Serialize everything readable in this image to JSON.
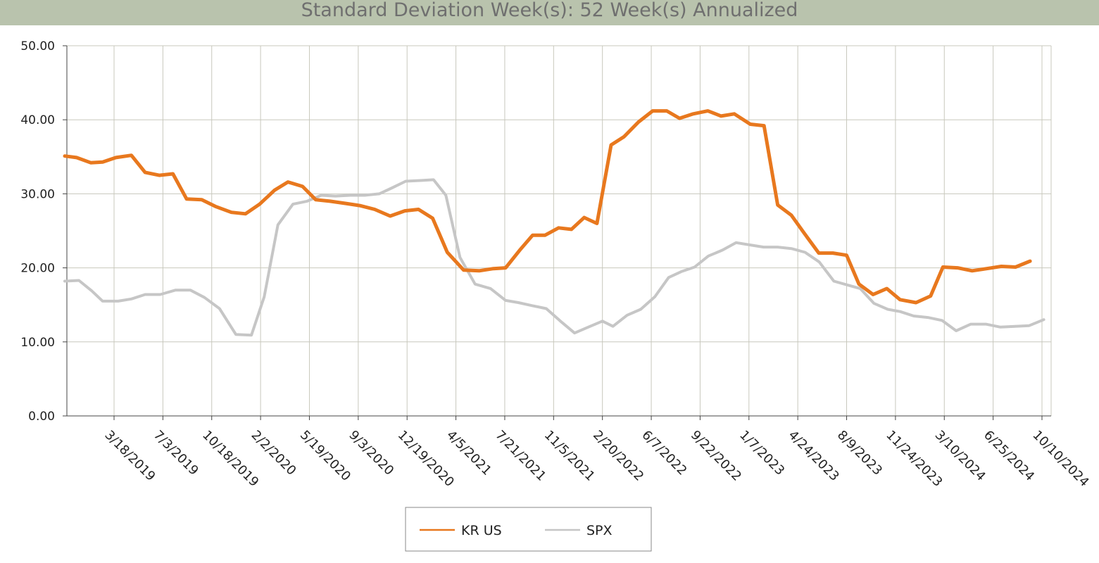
{
  "colors": {
    "title_bg": "#b9c3ad",
    "grid": "#c8c8bd",
    "axis": "#444444"
  },
  "chart_data": {
    "type": "line",
    "title": "Standard Deviation Week(s): 52 Week(s) Annualized",
    "xlabel": "",
    "ylabel": "",
    "ylim": [
      0,
      50
    ],
    "y_ticks": [
      "0.00",
      "10.00",
      "20.00",
      "30.00",
      "40.00",
      "50.00"
    ],
    "x_ticks": [
      "3/18/2019",
      "7/3/2019",
      "10/18/2019",
      "2/2/2020",
      "5/19/2020",
      "9/3/2020",
      "12/19/2020",
      "4/5/2021",
      "7/21/2021",
      "11/5/2021",
      "2/20/2022",
      "6/7/2022",
      "9/22/2022",
      "1/7/2023",
      "4/24/2023",
      "8/9/2023",
      "11/24/2023",
      "3/10/2024",
      "6/25/2024",
      "10/10/2024"
    ],
    "grid": true,
    "legend_position": "bottom-center",
    "series": [
      {
        "name": "KR US",
        "color": "#e8781e",
        "points": [
          [
            "2018-11-30",
            35.1
          ],
          [
            "2018-12-26",
            34.9
          ],
          [
            "2019-01-26",
            34.2
          ],
          [
            "2019-02-21",
            34.3
          ],
          [
            "2019-03-22",
            34.9
          ],
          [
            "2019-04-25",
            35.2
          ],
          [
            "2019-05-25",
            32.9
          ],
          [
            "2019-06-25",
            32.5
          ],
          [
            "2019-07-25",
            32.7
          ],
          [
            "2019-08-24",
            29.3
          ],
          [
            "2019-09-26",
            29.2
          ],
          [
            "2019-10-26",
            28.3
          ],
          [
            "2019-11-30",
            27.5
          ],
          [
            "2019-12-31",
            27.3
          ],
          [
            "2020-01-31",
            28.6
          ],
          [
            "2020-03-04",
            30.5
          ],
          [
            "2020-04-02",
            31.6
          ],
          [
            "2020-05-04",
            31.0
          ],
          [
            "2020-06-02",
            29.2
          ],
          [
            "2020-07-03",
            29.0
          ],
          [
            "2020-08-07",
            28.7
          ],
          [
            "2020-09-07",
            28.4
          ],
          [
            "2020-10-09",
            27.9
          ],
          [
            "2020-11-12",
            27.0
          ],
          [
            "2020-12-14",
            27.7
          ],
          [
            "2021-01-13",
            27.9
          ],
          [
            "2021-02-13",
            26.7
          ],
          [
            "2021-03-17",
            22.1
          ],
          [
            "2021-04-22",
            19.7
          ],
          [
            "2021-05-26",
            19.6
          ],
          [
            "2021-06-26",
            19.9
          ],
          [
            "2021-07-23",
            20.0
          ],
          [
            "2021-08-23",
            22.4
          ],
          [
            "2021-09-20",
            24.4
          ],
          [
            "2021-10-17",
            24.4
          ],
          [
            "2021-11-16",
            25.4
          ],
          [
            "2021-12-14",
            25.2
          ],
          [
            "2022-01-11",
            26.8
          ],
          [
            "2022-02-08",
            26.0
          ],
          [
            "2022-03-11",
            36.6
          ],
          [
            "2022-04-08",
            37.7
          ],
          [
            "2022-05-10",
            39.7
          ],
          [
            "2022-06-10",
            41.2
          ],
          [
            "2022-07-11",
            41.2
          ],
          [
            "2022-08-08",
            40.2
          ],
          [
            "2022-09-07",
            40.8
          ],
          [
            "2022-10-09",
            41.2
          ],
          [
            "2022-11-07",
            40.5
          ],
          [
            "2022-12-06",
            40.8
          ],
          [
            "2023-01-10",
            39.4
          ],
          [
            "2023-02-09",
            39.2
          ],
          [
            "2023-03-11",
            28.5
          ],
          [
            "2023-04-10",
            27.1
          ],
          [
            "2023-05-09",
            24.6
          ],
          [
            "2023-06-09",
            22.0
          ],
          [
            "2023-07-10",
            22.0
          ],
          [
            "2023-08-09",
            21.7
          ],
          [
            "2023-09-05",
            17.8
          ],
          [
            "2023-10-06",
            16.4
          ],
          [
            "2023-11-05",
            17.2
          ],
          [
            "2023-12-04",
            15.7
          ],
          [
            "2024-01-08",
            15.3
          ],
          [
            "2024-02-09",
            16.2
          ],
          [
            "2024-03-07",
            20.1
          ],
          [
            "2024-04-08",
            20.0
          ],
          [
            "2024-05-10",
            19.6
          ],
          [
            "2024-06-11",
            19.9
          ],
          [
            "2024-07-13",
            20.2
          ],
          [
            "2024-08-13",
            20.1
          ],
          [
            "2024-09-14",
            20.9
          ]
        ]
      },
      {
        "name": "SPX",
        "color": "#c6c6c6",
        "points": [
          [
            "2018-11-30",
            18.2
          ],
          [
            "2018-12-31",
            18.3
          ],
          [
            "2019-01-28",
            16.9
          ],
          [
            "2019-02-21",
            15.5
          ],
          [
            "2019-03-27",
            15.5
          ],
          [
            "2019-04-25",
            15.8
          ],
          [
            "2019-05-25",
            16.4
          ],
          [
            "2019-06-27",
            16.4
          ],
          [
            "2019-07-31",
            17.0
          ],
          [
            "2019-09-01",
            17.0
          ],
          [
            "2019-10-02",
            16.0
          ],
          [
            "2019-11-04",
            14.5
          ],
          [
            "2019-12-10",
            11.0
          ],
          [
            "2020-01-13",
            10.9
          ],
          [
            "2020-02-10",
            16.1
          ],
          [
            "2020-03-11",
            25.8
          ],
          [
            "2020-04-13",
            28.6
          ],
          [
            "2020-05-14",
            29.0
          ],
          [
            "2020-06-14",
            29.8
          ],
          [
            "2020-07-15",
            29.7
          ],
          [
            "2020-08-17",
            29.8
          ],
          [
            "2020-09-17",
            29.8
          ],
          [
            "2020-10-19",
            30.0
          ],
          [
            "2020-11-16",
            30.8
          ],
          [
            "2020-12-16",
            31.7
          ],
          [
            "2021-01-17",
            31.8
          ],
          [
            "2021-02-15",
            31.9
          ],
          [
            "2021-03-14",
            29.8
          ],
          [
            "2021-04-14",
            21.4
          ],
          [
            "2021-05-17",
            17.8
          ],
          [
            "2021-06-20",
            17.2
          ],
          [
            "2021-07-23",
            15.6
          ],
          [
            "2021-08-20",
            15.3
          ],
          [
            "2021-09-19",
            14.9
          ],
          [
            "2021-10-20",
            14.5
          ],
          [
            "2021-11-20",
            12.8
          ],
          [
            "2021-12-21",
            11.2
          ],
          [
            "2022-01-20",
            12.0
          ],
          [
            "2022-02-20",
            12.8
          ],
          [
            "2022-03-15",
            12.1
          ],
          [
            "2022-04-15",
            13.6
          ],
          [
            "2022-05-15",
            14.4
          ],
          [
            "2022-06-15",
            16.1
          ],
          [
            "2022-07-15",
            18.7
          ],
          [
            "2022-08-12",
            19.5
          ],
          [
            "2022-09-10",
            20.1
          ],
          [
            "2022-10-10",
            21.6
          ],
          [
            "2022-11-10",
            22.4
          ],
          [
            "2022-12-10",
            23.4
          ],
          [
            "2023-01-09",
            23.1
          ],
          [
            "2023-02-08",
            22.8
          ],
          [
            "2023-03-11",
            22.8
          ],
          [
            "2023-04-10",
            22.6
          ],
          [
            "2023-05-10",
            22.1
          ],
          [
            "2023-06-10",
            20.8
          ],
          [
            "2023-07-12",
            18.2
          ],
          [
            "2023-08-10",
            17.7
          ],
          [
            "2023-09-08",
            17.2
          ],
          [
            "2023-10-08",
            15.2
          ],
          [
            "2023-11-07",
            14.4
          ],
          [
            "2023-12-04",
            14.1
          ],
          [
            "2024-01-03",
            13.5
          ],
          [
            "2024-02-03",
            13.3
          ],
          [
            "2024-03-05",
            12.9
          ],
          [
            "2024-04-05",
            11.5
          ],
          [
            "2024-05-07",
            12.4
          ],
          [
            "2024-06-09",
            12.4
          ],
          [
            "2024-07-11",
            12.0
          ],
          [
            "2024-08-12",
            12.1
          ],
          [
            "2024-09-12",
            12.2
          ],
          [
            "2024-10-14",
            13.0
          ]
        ]
      }
    ]
  }
}
